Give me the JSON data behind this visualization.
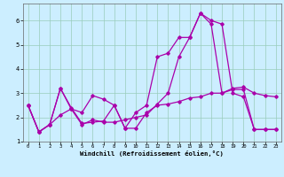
{
  "xlabel": "Windchill (Refroidissement éolien,°C)",
  "background_color": "#cceeff",
  "line_color": "#aa00aa",
  "grid_color": "#99ccbb",
  "xlim": [
    -0.5,
    23.5
  ],
  "ylim": [
    1.0,
    6.7
  ],
  "xticks": [
    0,
    1,
    2,
    3,
    4,
    5,
    6,
    7,
    8,
    9,
    10,
    11,
    12,
    13,
    14,
    15,
    16,
    17,
    18,
    19,
    20,
    21,
    22,
    23
  ],
  "yticks": [
    1,
    2,
    3,
    4,
    5,
    6
  ],
  "series1_x": [
    0,
    1,
    2,
    3,
    4,
    5,
    6,
    7,
    8,
    9,
    10,
    11,
    12,
    13,
    14,
    15,
    16,
    17,
    18,
    19,
    20,
    21,
    22,
    23
  ],
  "series1_y": [
    2.5,
    1.4,
    1.7,
    3.2,
    2.4,
    1.75,
    1.8,
    1.85,
    2.5,
    1.55,
    1.55,
    2.2,
    2.5,
    2.55,
    2.65,
    2.8,
    2.85,
    3.0,
    3.0,
    3.2,
    3.25,
    3.0,
    2.9,
    2.85
  ],
  "series2_x": [
    0,
    1,
    2,
    3,
    4,
    5,
    6,
    7,
    8,
    9,
    10,
    11,
    12,
    13,
    14,
    15,
    16,
    17,
    18,
    19,
    20,
    21,
    22,
    23
  ],
  "series2_y": [
    2.5,
    1.4,
    1.7,
    3.2,
    2.35,
    2.2,
    2.9,
    2.75,
    2.5,
    1.55,
    2.2,
    2.5,
    4.5,
    4.65,
    5.3,
    5.3,
    6.3,
    6.0,
    5.85,
    3.0,
    2.85,
    1.5,
    1.5,
    1.5
  ],
  "series3_x": [
    0,
    1,
    2,
    3,
    4,
    5,
    6,
    7,
    8,
    9,
    10,
    11,
    12,
    13,
    14,
    15,
    16,
    17,
    18,
    19,
    20,
    21,
    22,
    23
  ],
  "series3_y": [
    2.5,
    1.4,
    1.7,
    2.1,
    2.35,
    1.7,
    1.9,
    1.8,
    1.8,
    1.9,
    2.0,
    2.1,
    2.55,
    3.0,
    4.5,
    5.3,
    6.3,
    5.85,
    3.0,
    3.15,
    3.15,
    1.5,
    1.5,
    1.5
  ]
}
